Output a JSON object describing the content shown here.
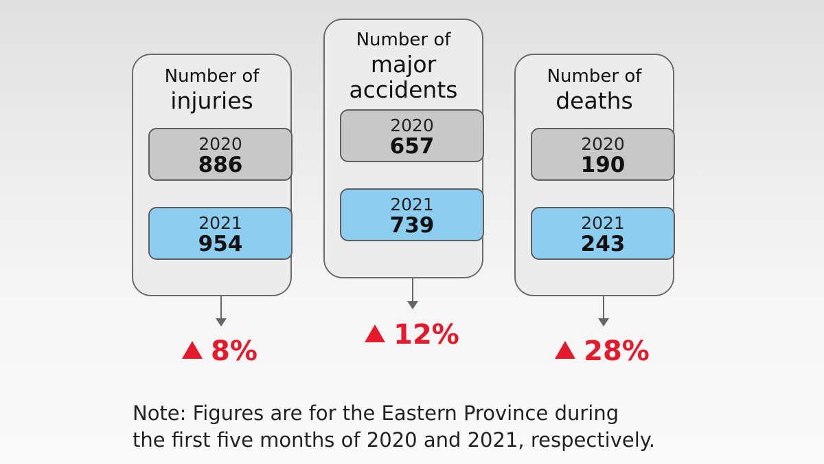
{
  "cards": [
    {
      "title_small": "Number of",
      "title_big": "injuries",
      "stats": [
        {
          "year": "2020",
          "value": "886"
        },
        {
          "year": "2021",
          "value": "954"
        }
      ],
      "change": "8%"
    },
    {
      "title_small": "Number of",
      "title_big_line1": "major",
      "title_big_line2": "accidents",
      "stats": [
        {
          "year": "2020",
          "value": "657"
        },
        {
          "year": "2021",
          "value": "739"
        }
      ],
      "change": "12%"
    },
    {
      "title_small": "Number of",
      "title_big": "deaths",
      "stats": [
        {
          "year": "2020",
          "value": "190"
        },
        {
          "year": "2021",
          "value": "243"
        }
      ],
      "change": "28%"
    }
  ],
  "note": {
    "line1": "Note: Figures are for the Eastern Province during",
    "line2": "the first five months of 2020 and 2021, respectively."
  },
  "colors": {
    "increase": "#e31b2c",
    "year_2020_box": "#c8c8c9",
    "year_2021_box": "#8ccdf0"
  }
}
